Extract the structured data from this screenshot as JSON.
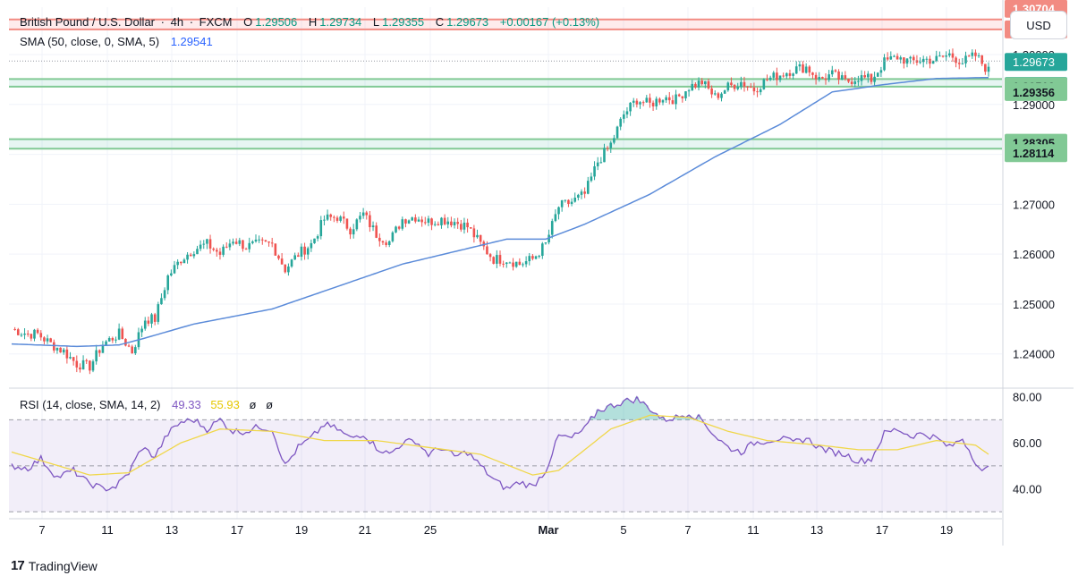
{
  "header": {
    "symbol": "British Pound / U.S. Dollar",
    "interval": "4h",
    "exchange": "FXCM",
    "open_label": "O",
    "open": "1.29506",
    "high_label": "H",
    "high": "1.29734",
    "low_label": "L",
    "low": "1.29355",
    "close_label": "C",
    "close": "1.29673",
    "change": "+0.00167 (+0.13%)",
    "sma_label": "SMA (50, close, 0, SMA, 5)",
    "sma_value": "1.29541",
    "rsi_label": "RSI (14, close, SMA, 14, 2)",
    "rsi_value": "49.33",
    "rsi_sma_value": "55.93",
    "rsi_extra1": "ø",
    "rsi_extra2": "ø"
  },
  "toolbar": {
    "currency_button": "USD"
  },
  "brand": {
    "name": "TradingView"
  },
  "colors": {
    "up": "#26a69a",
    "down": "#ef5350",
    "sma": "#5b8bd9",
    "rsi": "#7e57c2",
    "rsi_ma": "#f0d74a",
    "resistance": "#f28b82",
    "support": "#81c995"
  },
  "chart_data": [
    {
      "type": "candlestick",
      "title": "British Pound / U.S. Dollar · 4h · FXCM",
      "ylim": [
        1.2335,
        1.3095
      ],
      "yticks": [
        "1.24000",
        "1.25000",
        "1.26000",
        "1.27000",
        "1.28000",
        "1.29000",
        "1.30000"
      ],
      "xticks": [
        "7",
        "11",
        "13",
        "17",
        "19",
        "21",
        "25",
        "Mar",
        "5",
        "7",
        "11",
        "13",
        "17",
        "19"
      ],
      "price_labels": [
        {
          "text": "1.30704",
          "value": 1.30704,
          "kind": "resistance"
        },
        {
          "text": "1.30505",
          "value": 1.30505,
          "kind": "resistance"
        },
        {
          "text": "1.29673",
          "value": 1.29673,
          "kind": "current"
        },
        {
          "text": "54:27",
          "value": 1.2946,
          "kind": "countdown"
        },
        {
          "text": "1.29510",
          "value": 1.2951,
          "kind": "support"
        },
        {
          "text": "1.29356",
          "value": 1.29356,
          "kind": "support"
        },
        {
          "text": "1.28305",
          "value": 1.28305,
          "kind": "support"
        },
        {
          "text": "1.28114",
          "value": 1.28114,
          "kind": "support"
        }
      ],
      "zones": [
        {
          "from": 1.30505,
          "to": 1.30704,
          "kind": "resistance"
        },
        {
          "from": 1.29356,
          "to": 1.2951,
          "kind": "support"
        },
        {
          "from": 1.28114,
          "to": 1.28305,
          "kind": "support"
        }
      ],
      "close_anchors": [
        [
          0,
          1.245
        ],
        [
          5,
          1.244
        ],
        [
          8,
          1.244
        ],
        [
          12,
          1.242
        ],
        [
          16,
          1.2405
        ],
        [
          20,
          1.238
        ],
        [
          24,
          1.2375
        ],
        [
          28,
          1.242
        ],
        [
          33,
          1.244
        ],
        [
          37,
          1.2405
        ],
        [
          41,
          1.247
        ],
        [
          44,
          1.247
        ],
        [
          48,
          1.2555
        ],
        [
          52,
          1.259
        ],
        [
          56,
          1.261
        ],
        [
          60,
          1.262
        ],
        [
          64,
          1.26
        ],
        [
          68,
          1.263
        ],
        [
          72,
          1.2615
        ],
        [
          76,
          1.262
        ],
        [
          80,
          1.262
        ],
        [
          84,
          1.257
        ],
        [
          88,
          1.26
        ],
        [
          92,
          1.262
        ],
        [
          96,
          1.267
        ],
        [
          100,
          1.2675
        ],
        [
          104,
          1.265
        ],
        [
          108,
          1.268
        ],
        [
          112,
          1.264
        ],
        [
          116,
          1.2625
        ],
        [
          120,
          1.267
        ],
        [
          124,
          1.2675
        ],
        [
          128,
          1.2665
        ],
        [
          132,
          1.267
        ],
        [
          136,
          1.2665
        ],
        [
          140,
          1.2655
        ],
        [
          144,
          1.262
        ],
        [
          148,
          1.259
        ],
        [
          152,
          1.259
        ],
        [
          156,
          1.258
        ],
        [
          160,
          1.259
        ],
        [
          164,
          1.262
        ],
        [
          168,
          1.2695
        ],
        [
          172,
          1.2705
        ],
        [
          176,
          1.272
        ],
        [
          180,
          1.2785
        ],
        [
          184,
          1.282
        ],
        [
          188,
          1.288
        ],
        [
          192,
          1.291
        ],
        [
          196,
          1.29
        ],
        [
          200,
          1.2915
        ],
        [
          204,
          1.291
        ],
        [
          208,
          1.2935
        ],
        [
          212,
          1.2945
        ],
        [
          216,
          1.2915
        ],
        [
          220,
          1.2935
        ],
        [
          224,
          1.2945
        ],
        [
          228,
          1.293
        ],
        [
          232,
          1.295
        ],
        [
          236,
          1.296
        ],
        [
          240,
          1.297
        ],
        [
          244,
          1.2975
        ],
        [
          248,
          1.295
        ],
        [
          252,
          1.296
        ],
        [
          256,
          1.2945
        ],
        [
          260,
          1.2955
        ],
        [
          264,
          1.295
        ],
        [
          268,
          1.2985
        ],
        [
          272,
          1.2995
        ],
        [
          276,
          1.2985
        ],
        [
          280,
          1.299
        ],
        [
          284,
          1.299
        ],
        [
          288,
          1.3
        ],
        [
          292,
          1.2985
        ],
        [
          296,
          1.2998
        ],
        [
          300,
          1.2967
        ]
      ],
      "sma_anchors": [
        [
          0,
          1.242
        ],
        [
          20,
          1.2415
        ],
        [
          33,
          1.2418
        ],
        [
          40,
          1.243
        ],
        [
          56,
          1.246
        ],
        [
          80,
          1.249
        ],
        [
          100,
          1.2535
        ],
        [
          120,
          1.258
        ],
        [
          136,
          1.2605
        ],
        [
          152,
          1.263
        ],
        [
          164,
          1.263
        ],
        [
          176,
          1.266
        ],
        [
          196,
          1.272
        ],
        [
          216,
          1.2795
        ],
        [
          236,
          1.286
        ],
        [
          252,
          1.2925
        ],
        [
          268,
          1.294
        ],
        [
          284,
          1.2952
        ],
        [
          300,
          1.2954
        ]
      ]
    },
    {
      "type": "line",
      "title": "RSI (14, close, SMA, 14, 2)",
      "ylim": [
        27,
        83
      ],
      "yticks": [
        "40.00",
        "60.00",
        "80.00"
      ],
      "bands": {
        "upper": 70,
        "middle": 50,
        "lower": 30
      },
      "rsi_anchors": [
        [
          0,
          50
        ],
        [
          5,
          49
        ],
        [
          9,
          53
        ],
        [
          14,
          45
        ],
        [
          19,
          48
        ],
        [
          23,
          43
        ],
        [
          28,
          40
        ],
        [
          32,
          41
        ],
        [
          36,
          47
        ],
        [
          40,
          58
        ],
        [
          44,
          54
        ],
        [
          48,
          64
        ],
        [
          52,
          69
        ],
        [
          56,
          70
        ],
        [
          60,
          66
        ],
        [
          64,
          70
        ],
        [
          68,
          65
        ],
        [
          72,
          65
        ],
        [
          76,
          67
        ],
        [
          80,
          66
        ],
        [
          84,
          50
        ],
        [
          88,
          58
        ],
        [
          92,
          62
        ],
        [
          96,
          68
        ],
        [
          100,
          66
        ],
        [
          104,
          62
        ],
        [
          108,
          64
        ],
        [
          112,
          58
        ],
        [
          116,
          55
        ],
        [
          120,
          60
        ],
        [
          124,
          61
        ],
        [
          128,
          55
        ],
        [
          132,
          58
        ],
        [
          136,
          54
        ],
        [
          140,
          56
        ],
        [
          144,
          50
        ],
        [
          148,
          44
        ],
        [
          152,
          40
        ],
        [
          156,
          43
        ],
        [
          160,
          41
        ],
        [
          164,
          48
        ],
        [
          168,
          63
        ],
        [
          172,
          62
        ],
        [
          176,
          66
        ],
        [
          180,
          74
        ],
        [
          184,
          76
        ],
        [
          188,
          78
        ],
        [
          192,
          79
        ],
        [
          196,
          75
        ],
        [
          200,
          70
        ],
        [
          204,
          71
        ],
        [
          208,
          73
        ],
        [
          212,
          70
        ],
        [
          216,
          63
        ],
        [
          220,
          58
        ],
        [
          224,
          56
        ],
        [
          228,
          60
        ],
        [
          232,
          61
        ],
        [
          236,
          62
        ],
        [
          240,
          60
        ],
        [
          244,
          62
        ],
        [
          248,
          58
        ],
        [
          252,
          56
        ],
        [
          256,
          55
        ],
        [
          260,
          52
        ],
        [
          264,
          53
        ],
        [
          268,
          64
        ],
        [
          272,
          66
        ],
        [
          276,
          63
        ],
        [
          280,
          64
        ],
        [
          284,
          62
        ],
        [
          288,
          58
        ],
        [
          292,
          62
        ],
        [
          296,
          52
        ],
        [
          298,
          47
        ],
        [
          300,
          49
        ]
      ],
      "rsi_ma_anchors": [
        [
          0,
          56
        ],
        [
          12,
          51
        ],
        [
          24,
          46
        ],
        [
          36,
          47
        ],
        [
          52,
          60
        ],
        [
          64,
          66
        ],
        [
          80,
          65
        ],
        [
          96,
          61
        ],
        [
          112,
          61
        ],
        [
          128,
          58
        ],
        [
          144,
          55
        ],
        [
          160,
          46
        ],
        [
          168,
          48
        ],
        [
          184,
          66
        ],
        [
          196,
          72
        ],
        [
          208,
          71
        ],
        [
          220,
          65
        ],
        [
          232,
          61
        ],
        [
          248,
          59
        ],
        [
          260,
          57
        ],
        [
          272,
          57
        ],
        [
          284,
          61
        ],
        [
          296,
          59
        ],
        [
          300,
          55
        ]
      ]
    }
  ]
}
